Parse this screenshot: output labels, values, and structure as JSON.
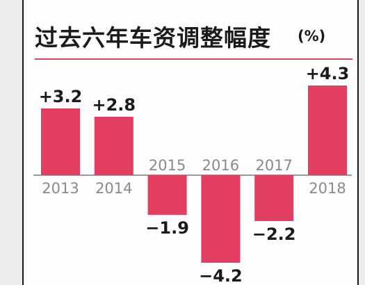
{
  "title": "过去六年车资调整幅度",
  "unit": "(%)",
  "colors": {
    "bar": "#e23e62",
    "baseline": "#9a9a9a",
    "year_label": "#8a8a8a",
    "value_label": "#1b1b1b"
  },
  "chart_data": {
    "type": "bar",
    "title": "过去六年车资调整幅度",
    "unit": "(%)",
    "categories": [
      "2013",
      "2014",
      "2015",
      "2016",
      "2017",
      "2018"
    ],
    "values": [
      3.2,
      2.8,
      -1.9,
      -4.2,
      -2.2,
      4.3
    ],
    "value_labels": [
      "+3.2",
      "+2.8",
      "−1.9",
      "−4.2",
      "−2.2",
      "+4.3"
    ],
    "ylim": [
      -4.5,
      4.5
    ],
    "grid": false,
    "legend": "none"
  }
}
